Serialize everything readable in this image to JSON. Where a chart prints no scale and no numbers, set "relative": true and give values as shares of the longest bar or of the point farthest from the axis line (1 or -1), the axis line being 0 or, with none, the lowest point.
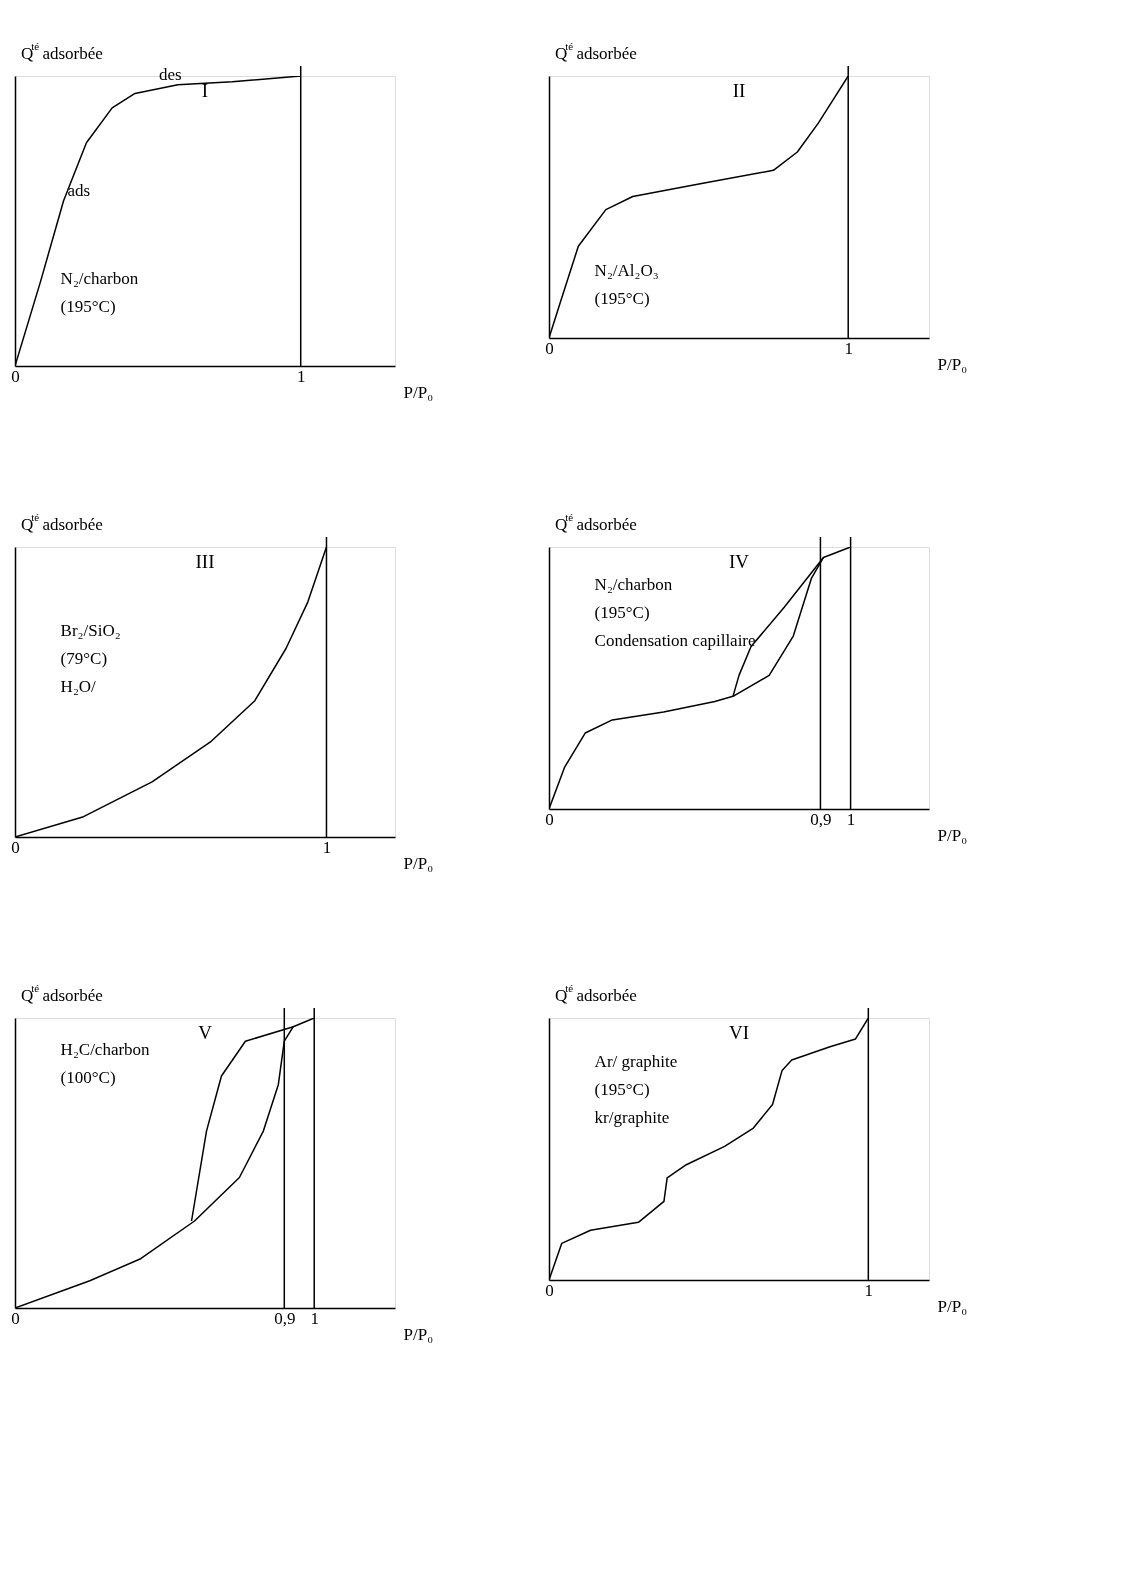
{
  "chart_data": [
    {
      "type": "line",
      "title": "I",
      "xlabel": "P/P₀",
      "ylabel": "Q$^{té}$ adsorbée",
      "relative": true,
      "xlim": [
        0,
        1.33
      ],
      "xticks": [
        0,
        1
      ],
      "series": [
        {
          "color": "#000000",
          "x": [
            0,
            0.089,
            0.17,
            0.25,
            0.34,
            0.42,
            0.57,
            0.76,
            1
          ],
          "values": [
            0,
            0.29,
            0.57,
            0.77,
            0.89,
            0.94,
            0.97,
            0.98,
            1
          ]
        }
      ],
      "ref_lines": [
        {
          "axis": "x",
          "value": 1,
          "color": "#000000"
        }
      ],
      "annotations": [
        "N₂/charbon",
        "(195°C)",
        {
          "text": "des",
          "x": 0.49,
          "y": 0.97
        },
        {
          "text": "ads",
          "x": 0.17,
          "y": 0.57
        }
      ]
    },
    {
      "type": "line",
      "title": "II",
      "xlabel": "P/P₀",
      "ylabel": "Q$^{té}$ adsorbée",
      "relative": true,
      "xlim": [
        0,
        1.27
      ],
      "xticks": [
        0,
        1
      ],
      "series": [
        {
          "color": "#000000",
          "x": [
            0,
            0.039,
            0.098,
            0.19,
            0.28,
            0.51,
            0.75,
            0.83,
            0.9,
            1
          ],
          "values": [
            0,
            0.14,
            0.35,
            0.49,
            0.54,
            0.59,
            0.64,
            0.71,
            0.82,
            1
          ]
        }
      ],
      "ref_lines": [
        {
          "axis": "x",
          "value": 1,
          "color": "#000000"
        }
      ],
      "annotations": [
        "N₂/Al₂O₃",
        "(195°C)"
      ]
    },
    {
      "type": "line",
      "title": "III",
      "xlabel": "P/P₀",
      "ylabel": "Q$^{té}$ adsorbée",
      "relative": true,
      "xlim": [
        0,
        1.22
      ],
      "xticks": [
        0,
        1
      ],
      "series": [
        {
          "color": "#000000",
          "x": [
            0,
            0.22,
            0.44,
            0.63,
            0.77,
            0.87,
            0.94,
            1
          ],
          "values": [
            0,
            0.07,
            0.19,
            0.33,
            0.47,
            0.65,
            0.81,
            1
          ]
        }
      ],
      "ref_lines": [
        {
          "axis": "x",
          "value": 1,
          "color": "#000000"
        }
      ],
      "annotations": [
        "Br₂/SiO₂",
        "(79°C)",
        "H₂O/"
      ]
    },
    {
      "type": "line",
      "title": "IV",
      "xlabel": "P/P₀",
      "ylabel": "Q$^{té}$ adsorbée",
      "relative": true,
      "xlim": [
        0,
        1.26
      ],
      "xticks": [
        0,
        {
          "value": 0.9,
          "label": "0,9"
        },
        1
      ],
      "series": [
        {
          "color": "#000000",
          "x": [
            0,
            0.052,
            0.12,
            0.21,
            0.38,
            0.55,
            0.61,
            0.73,
            0.81,
            0.87,
            0.91,
            1
          ],
          "values": [
            0,
            0.16,
            0.29,
            0.34,
            0.37,
            0.41,
            0.43,
            0.51,
            0.66,
            0.88,
            0.96,
            1
          ]
        },
        {
          "color": "#000000",
          "x": [
            0.91,
            0.78,
            0.67,
            0.63,
            0.61
          ],
          "values": [
            0.96,
            0.77,
            0.62,
            0.51,
            0.43
          ]
        }
      ],
      "ref_lines": [
        {
          "axis": "x",
          "value": 0.9,
          "color": "#000000"
        },
        {
          "axis": "x",
          "value": 1,
          "color": "#000000"
        }
      ],
      "annotations": [
        "N₂/charbon",
        "(195°C)",
        "Condensation capillaire"
      ]
    },
    {
      "type": "line",
      "title": "V",
      "xlabel": "P/P₀",
      "ylabel": "Q$^{té}$ adsorbée",
      "relative": true,
      "xlim": [
        0,
        1.27
      ],
      "xticks": [
        0,
        {
          "value": 0.9,
          "label": "0,9"
        },
        1
      ],
      "series": [
        {
          "color": "#000000",
          "x": [
            0,
            0.25,
            0.42,
            0.6,
            0.75,
            0.83,
            0.88,
            0.9,
            0.93,
            1
          ],
          "values": [
            0,
            0.094,
            0.17,
            0.3,
            0.45,
            0.61,
            0.77,
            0.92,
            0.97,
            1
          ]
        },
        {
          "color": "#000000",
          "x": [
            0.93,
            0.77,
            0.69,
            0.64,
            0.59
          ],
          "values": [
            0.97,
            0.92,
            0.8,
            0.61,
            0.3
          ]
        }
      ],
      "ref_lines": [
        {
          "axis": "x",
          "value": 0.9,
          "color": "#000000"
        },
        {
          "axis": "x",
          "value": 1,
          "color": "#000000"
        }
      ],
      "annotations": [
        "H₂C/charbon",
        "(100°C)"
      ]
    },
    {
      "type": "line",
      "title": "VI",
      "xlabel": "P/P₀",
      "ylabel": "Q$^{té}$ adsorbée",
      "relative": true,
      "xlim": [
        0,
        1.19
      ],
      "xticks": [
        0,
        1
      ],
      "series": [
        {
          "color": "#000000",
          "x": [
            0,
            0.04,
            0.13,
            0.28,
            0.36,
            0.37,
            0.43,
            0.55,
            0.64,
            0.7,
            0.73,
            0.76,
            0.88,
            0.96,
            1
          ],
          "values": [
            0,
            0.14,
            0.19,
            0.22,
            0.3,
            0.39,
            0.44,
            0.51,
            0.58,
            0.67,
            0.8,
            0.84,
            0.89,
            0.92,
            1
          ]
        }
      ],
      "ref_lines": [
        {
          "axis": "x",
          "value": 1,
          "color": "#000000"
        }
      ],
      "annotations": [
        "Ar/ graphite",
        "(195°C)",
        "kr/graphite"
      ]
    }
  ]
}
